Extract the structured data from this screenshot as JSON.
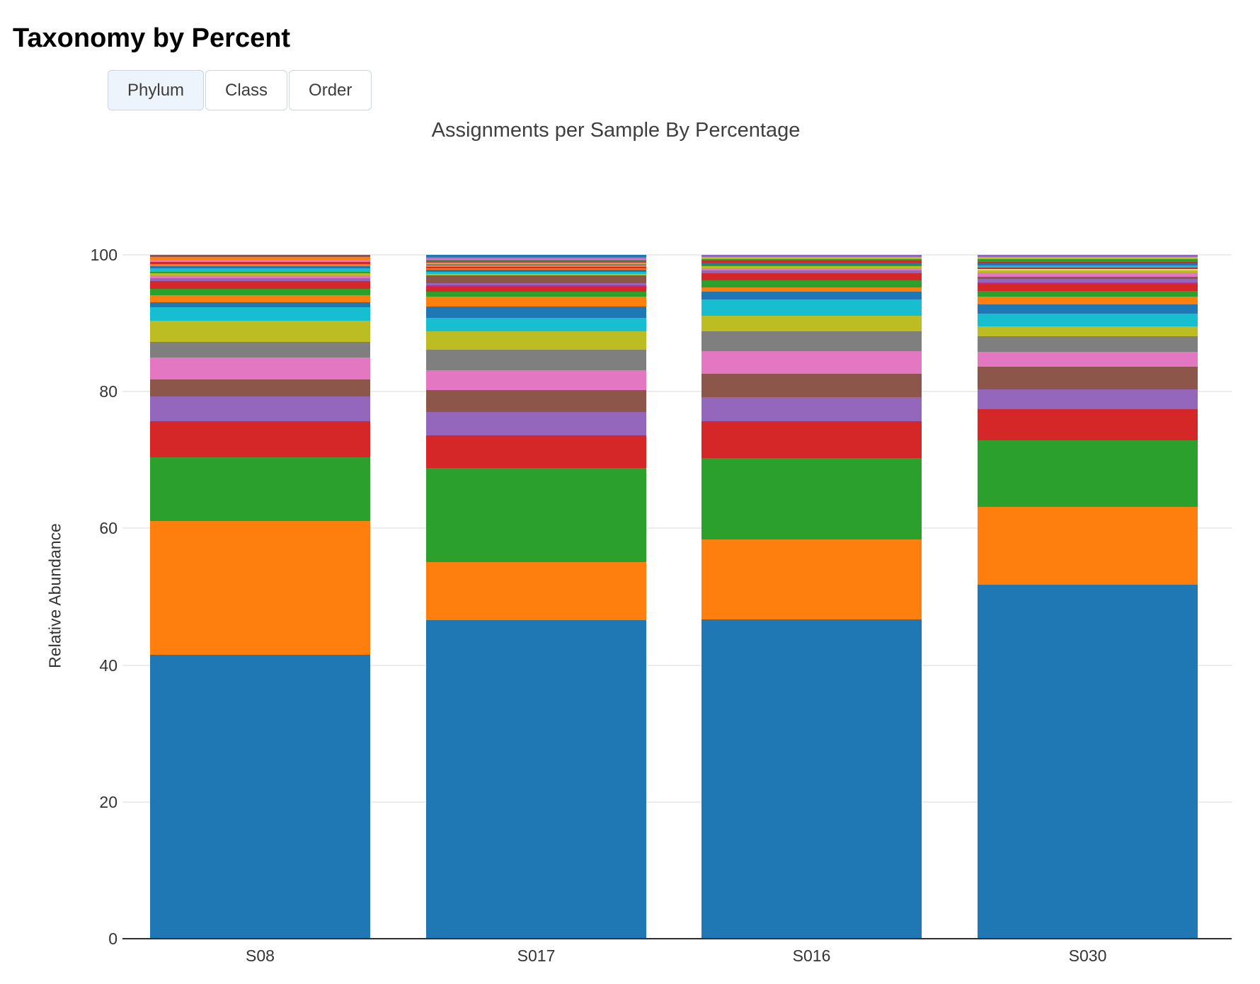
{
  "page": {
    "title": "Taxonomy by Percent"
  },
  "tabs": [
    {
      "label": "Phylum",
      "active": true
    },
    {
      "label": "Class",
      "active": false
    },
    {
      "label": "Order",
      "active": false
    }
  ],
  "chart_data": {
    "type": "bar",
    "stacked": true,
    "title": "Assignments per Sample By Percentage",
    "xlabel": "",
    "ylabel": "Relative Abundance",
    "categories": [
      "S08",
      "S017",
      "S016",
      "S030"
    ],
    "y_ticks": [
      0,
      20,
      40,
      60,
      80,
      100
    ],
    "ylim": [
      0,
      100
    ],
    "grid": true,
    "legend_position": "none",
    "palette": {
      "blue": "#1f77b4",
      "orange": "#ff7f0e",
      "green": "#2ca02c",
      "red": "#d62728",
      "purple": "#9467bd",
      "brown": "#8c564b",
      "pink": "#e377c2",
      "gray": "#7f7f7f",
      "olive": "#bcbd22",
      "cyan": "#17becf",
      "magenta": "#d6276e",
      "lightolive": "#dbdb8d"
    },
    "bars": [
      {
        "sample": "S08",
        "segments": [
          [
            "blue",
            41.7
          ],
          [
            "orange",
            19.7
          ],
          [
            "green",
            9.3
          ],
          [
            "red",
            5.3
          ],
          [
            "purple",
            3.7
          ],
          [
            "brown",
            2.5
          ],
          [
            "pink",
            3.2
          ],
          [
            "gray",
            2.3
          ],
          [
            "olive",
            3.1
          ],
          [
            "cyan",
            1.95
          ],
          [
            "blue",
            0.75
          ],
          [
            "orange",
            1.0
          ],
          [
            "green",
            1.0
          ],
          [
            "red",
            1.1
          ],
          [
            "purple",
            0.4
          ],
          [
            "pink",
            0.5
          ],
          [
            "olive",
            0.25
          ],
          [
            "green",
            0.25
          ],
          [
            "cyan",
            0.5
          ],
          [
            "blue",
            0.3
          ],
          [
            "orange",
            0.3
          ],
          [
            "red",
            0.35
          ],
          [
            "pink",
            0.3
          ],
          [
            "orange",
            0.4
          ],
          [
            "brown",
            0.3
          ]
        ]
      },
      {
        "sample": "S017",
        "segments": [
          [
            "blue",
            46.5
          ],
          [
            "orange",
            8.5
          ],
          [
            "green",
            13.8
          ],
          [
            "red",
            4.7
          ],
          [
            "purple",
            3.4
          ],
          [
            "brown",
            3.3
          ],
          [
            "pink",
            2.9
          ],
          [
            "gray",
            2.9
          ],
          [
            "olive",
            2.7
          ],
          [
            "cyan",
            2.0
          ],
          [
            "blue",
            1.7
          ],
          [
            "orange",
            1.4
          ],
          [
            "green",
            0.75
          ],
          [
            "red",
            0.72
          ],
          [
            "magenta",
            0.2
          ],
          [
            "purple",
            0.3
          ],
          [
            "brown",
            1.1
          ],
          [
            "olive",
            0.28
          ],
          [
            "cyan",
            0.27
          ],
          [
            "blue",
            0.3
          ],
          [
            "orange",
            0.25
          ],
          [
            "red",
            0.18
          ],
          [
            "orange",
            0.2
          ],
          [
            "purple",
            0.25
          ],
          [
            "olive",
            0.2
          ],
          [
            "magenta",
            0.2
          ],
          [
            "green",
            0.2
          ],
          [
            "pink",
            0.2
          ],
          [
            "purple",
            0.25
          ],
          [
            "blue",
            0.25
          ]
        ]
      },
      {
        "sample": "S016",
        "segments": [
          [
            "blue",
            46.6
          ],
          [
            "orange",
            11.7
          ],
          [
            "green",
            11.9
          ],
          [
            "red",
            5.4
          ],
          [
            "purple",
            3.5
          ],
          [
            "brown",
            3.4
          ],
          [
            "pink",
            3.3
          ],
          [
            "gray",
            2.9
          ],
          [
            "olive",
            2.3
          ],
          [
            "cyan",
            2.4
          ],
          [
            "blue",
            1.1
          ],
          [
            "orange",
            0.7
          ],
          [
            "green",
            1.0
          ],
          [
            "red",
            1.0
          ],
          [
            "purple",
            0.4
          ],
          [
            "pink",
            0.4
          ],
          [
            "olive",
            0.3
          ],
          [
            "green",
            0.2
          ],
          [
            "blue",
            0.3
          ],
          [
            "red",
            0.3
          ],
          [
            "green",
            0.2
          ],
          [
            "olive",
            0.3
          ],
          [
            "purple",
            0.3
          ]
        ]
      },
      {
        "sample": "S030",
        "segments": [
          [
            "blue",
            52.3
          ],
          [
            "orange",
            11.5
          ],
          [
            "green",
            9.8
          ],
          [
            "red",
            4.6
          ],
          [
            "purple",
            2.9
          ],
          [
            "brown",
            3.4
          ],
          [
            "pink",
            2.2
          ],
          [
            "gray",
            2.3
          ],
          [
            "olive",
            1.4
          ],
          [
            "cyan",
            1.9
          ],
          [
            "blue",
            1.4
          ],
          [
            "orange",
            1.1
          ],
          [
            "green",
            0.9
          ],
          [
            "red",
            1.0
          ],
          [
            "magenta",
            0.2
          ],
          [
            "purple",
            0.6
          ],
          [
            "brown",
            0.3
          ],
          [
            "pink",
            0.6
          ],
          [
            "olive",
            0.3
          ],
          [
            "lightolive",
            0.2
          ],
          [
            "red",
            0.2
          ],
          [
            "cyan",
            0.4
          ],
          [
            "blue",
            0.3
          ],
          [
            "red",
            0.2
          ],
          [
            "green",
            0.4
          ],
          [
            "olive",
            0.3
          ],
          [
            "purple",
            0.3
          ]
        ]
      }
    ]
  }
}
